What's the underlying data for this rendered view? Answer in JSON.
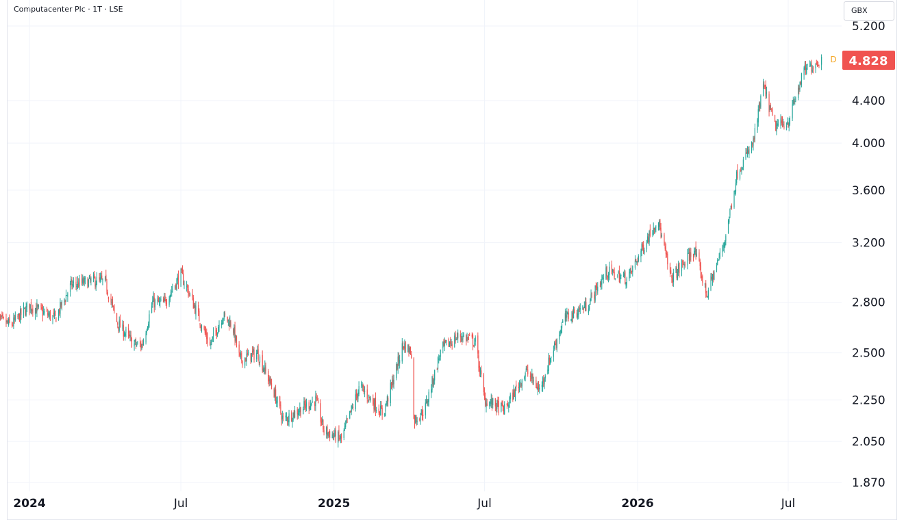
{
  "header": {
    "title": "Computacenter Plc · 1T · LSE",
    "currency": "GBX"
  },
  "badges": {
    "dividend_marker": "D",
    "last_price": "4.828"
  },
  "colors": {
    "up": "#26a69a",
    "down": "#ef5350",
    "price_badge": "#f05350",
    "dividend_marker": "#f5a623",
    "grid": "#f0f3fa"
  },
  "chart_data": {
    "type": "candlestick",
    "scale": "log",
    "y_ticks": [
      {
        "value": 5200,
        "label": "5.200"
      },
      {
        "value": 4400,
        "label": "4.400"
      },
      {
        "value": 4000,
        "label": "4.000"
      },
      {
        "value": 3600,
        "label": "3.600"
      },
      {
        "value": 3200,
        "label": "3.200"
      },
      {
        "value": 2800,
        "label": "2.800"
      },
      {
        "value": 2500,
        "label": "2.500"
      },
      {
        "value": 2250,
        "label": "2.250"
      },
      {
        "value": 2050,
        "label": "2.050"
      },
      {
        "value": 1870,
        "label": "1.870"
      }
    ],
    "x_ticks": [
      {
        "date": "2024-01-01",
        "label": "2024",
        "year": true
      },
      {
        "date": "2024-07-01",
        "label": "Jul",
        "year": false
      },
      {
        "date": "2025-01-01",
        "label": "2025",
        "year": true
      },
      {
        "date": "2025-07-01",
        "label": "Jul",
        "year": false
      },
      {
        "date": "2026-01-01",
        "label": "2026",
        "year": true
      },
      {
        "date": "2026-07-01",
        "label": "Jul",
        "year": false
      }
    ],
    "x_range": [
      "2023-11-20",
      "2026-10-05"
    ],
    "y_range": [
      1800,
      5300
    ],
    "last_price": 4828,
    "close_path": [
      [
        "2023-11-21",
        2700
      ],
      [
        "2023-12-10",
        2660
      ],
      [
        "2024-01-01",
        2780
      ],
      [
        "2024-02-01",
        2700
      ],
      [
        "2024-02-20",
        2910
      ],
      [
        "2024-03-20",
        2940
      ],
      [
        "2024-04-01",
        2930
      ],
      [
        "2024-04-15",
        2680
      ],
      [
        "2024-05-05",
        2550
      ],
      [
        "2024-05-15",
        2540
      ],
      [
        "2024-05-28",
        2800
      ],
      [
        "2024-06-10",
        2790
      ],
      [
        "2024-07-01",
        2980
      ],
      [
        "2024-07-10",
        2870
      ],
      [
        "2024-08-05",
        2540
      ],
      [
        "2024-08-20",
        2720
      ],
      [
        "2024-09-01",
        2660
      ],
      [
        "2024-09-10",
        2460
      ],
      [
        "2024-10-01",
        2500
      ],
      [
        "2024-10-20",
        2300
      ],
      [
        "2024-11-01",
        2150
      ],
      [
        "2024-11-20",
        2200
      ],
      [
        "2024-12-10",
        2250
      ],
      [
        "2024-12-20",
        2100
      ],
      [
        "2025-01-10",
        2060
      ],
      [
        "2025-02-01",
        2320
      ],
      [
        "2025-03-01",
        2180
      ],
      [
        "2025-03-15",
        2380
      ],
      [
        "2025-03-25",
        2550
      ],
      [
        "2025-04-05",
        2500
      ],
      [
        "2025-04-07",
        2150
      ],
      [
        "2025-04-20",
        2200
      ],
      [
        "2025-05-10",
        2520
      ],
      [
        "2025-06-01",
        2600
      ],
      [
        "2025-06-20",
        2560
      ],
      [
        "2025-07-01",
        2250
      ],
      [
        "2025-07-25",
        2200
      ],
      [
        "2025-08-20",
        2400
      ],
      [
        "2025-09-05",
        2300
      ],
      [
        "2025-09-20",
        2500
      ],
      [
        "2025-10-05",
        2700
      ],
      [
        "2025-11-01",
        2780
      ],
      [
        "2025-11-25",
        3000
      ],
      [
        "2025-12-20",
        2950
      ],
      [
        "2026-01-10",
        3200
      ],
      [
        "2026-01-25",
        3380
      ],
      [
        "2026-02-10",
        2950
      ],
      [
        "2026-02-25",
        3050
      ],
      [
        "2026-03-10",
        3150
      ],
      [
        "2026-03-25",
        2850
      ],
      [
        "2026-04-15",
        3200
      ],
      [
        "2026-05-01",
        3750
      ],
      [
        "2026-05-20",
        4000
      ],
      [
        "2026-06-01",
        4550
      ],
      [
        "2026-06-15",
        4150
      ],
      [
        "2026-07-01",
        4200
      ],
      [
        "2026-07-20",
        4700
      ],
      [
        "2026-08-10",
        4828
      ]
    ]
  }
}
